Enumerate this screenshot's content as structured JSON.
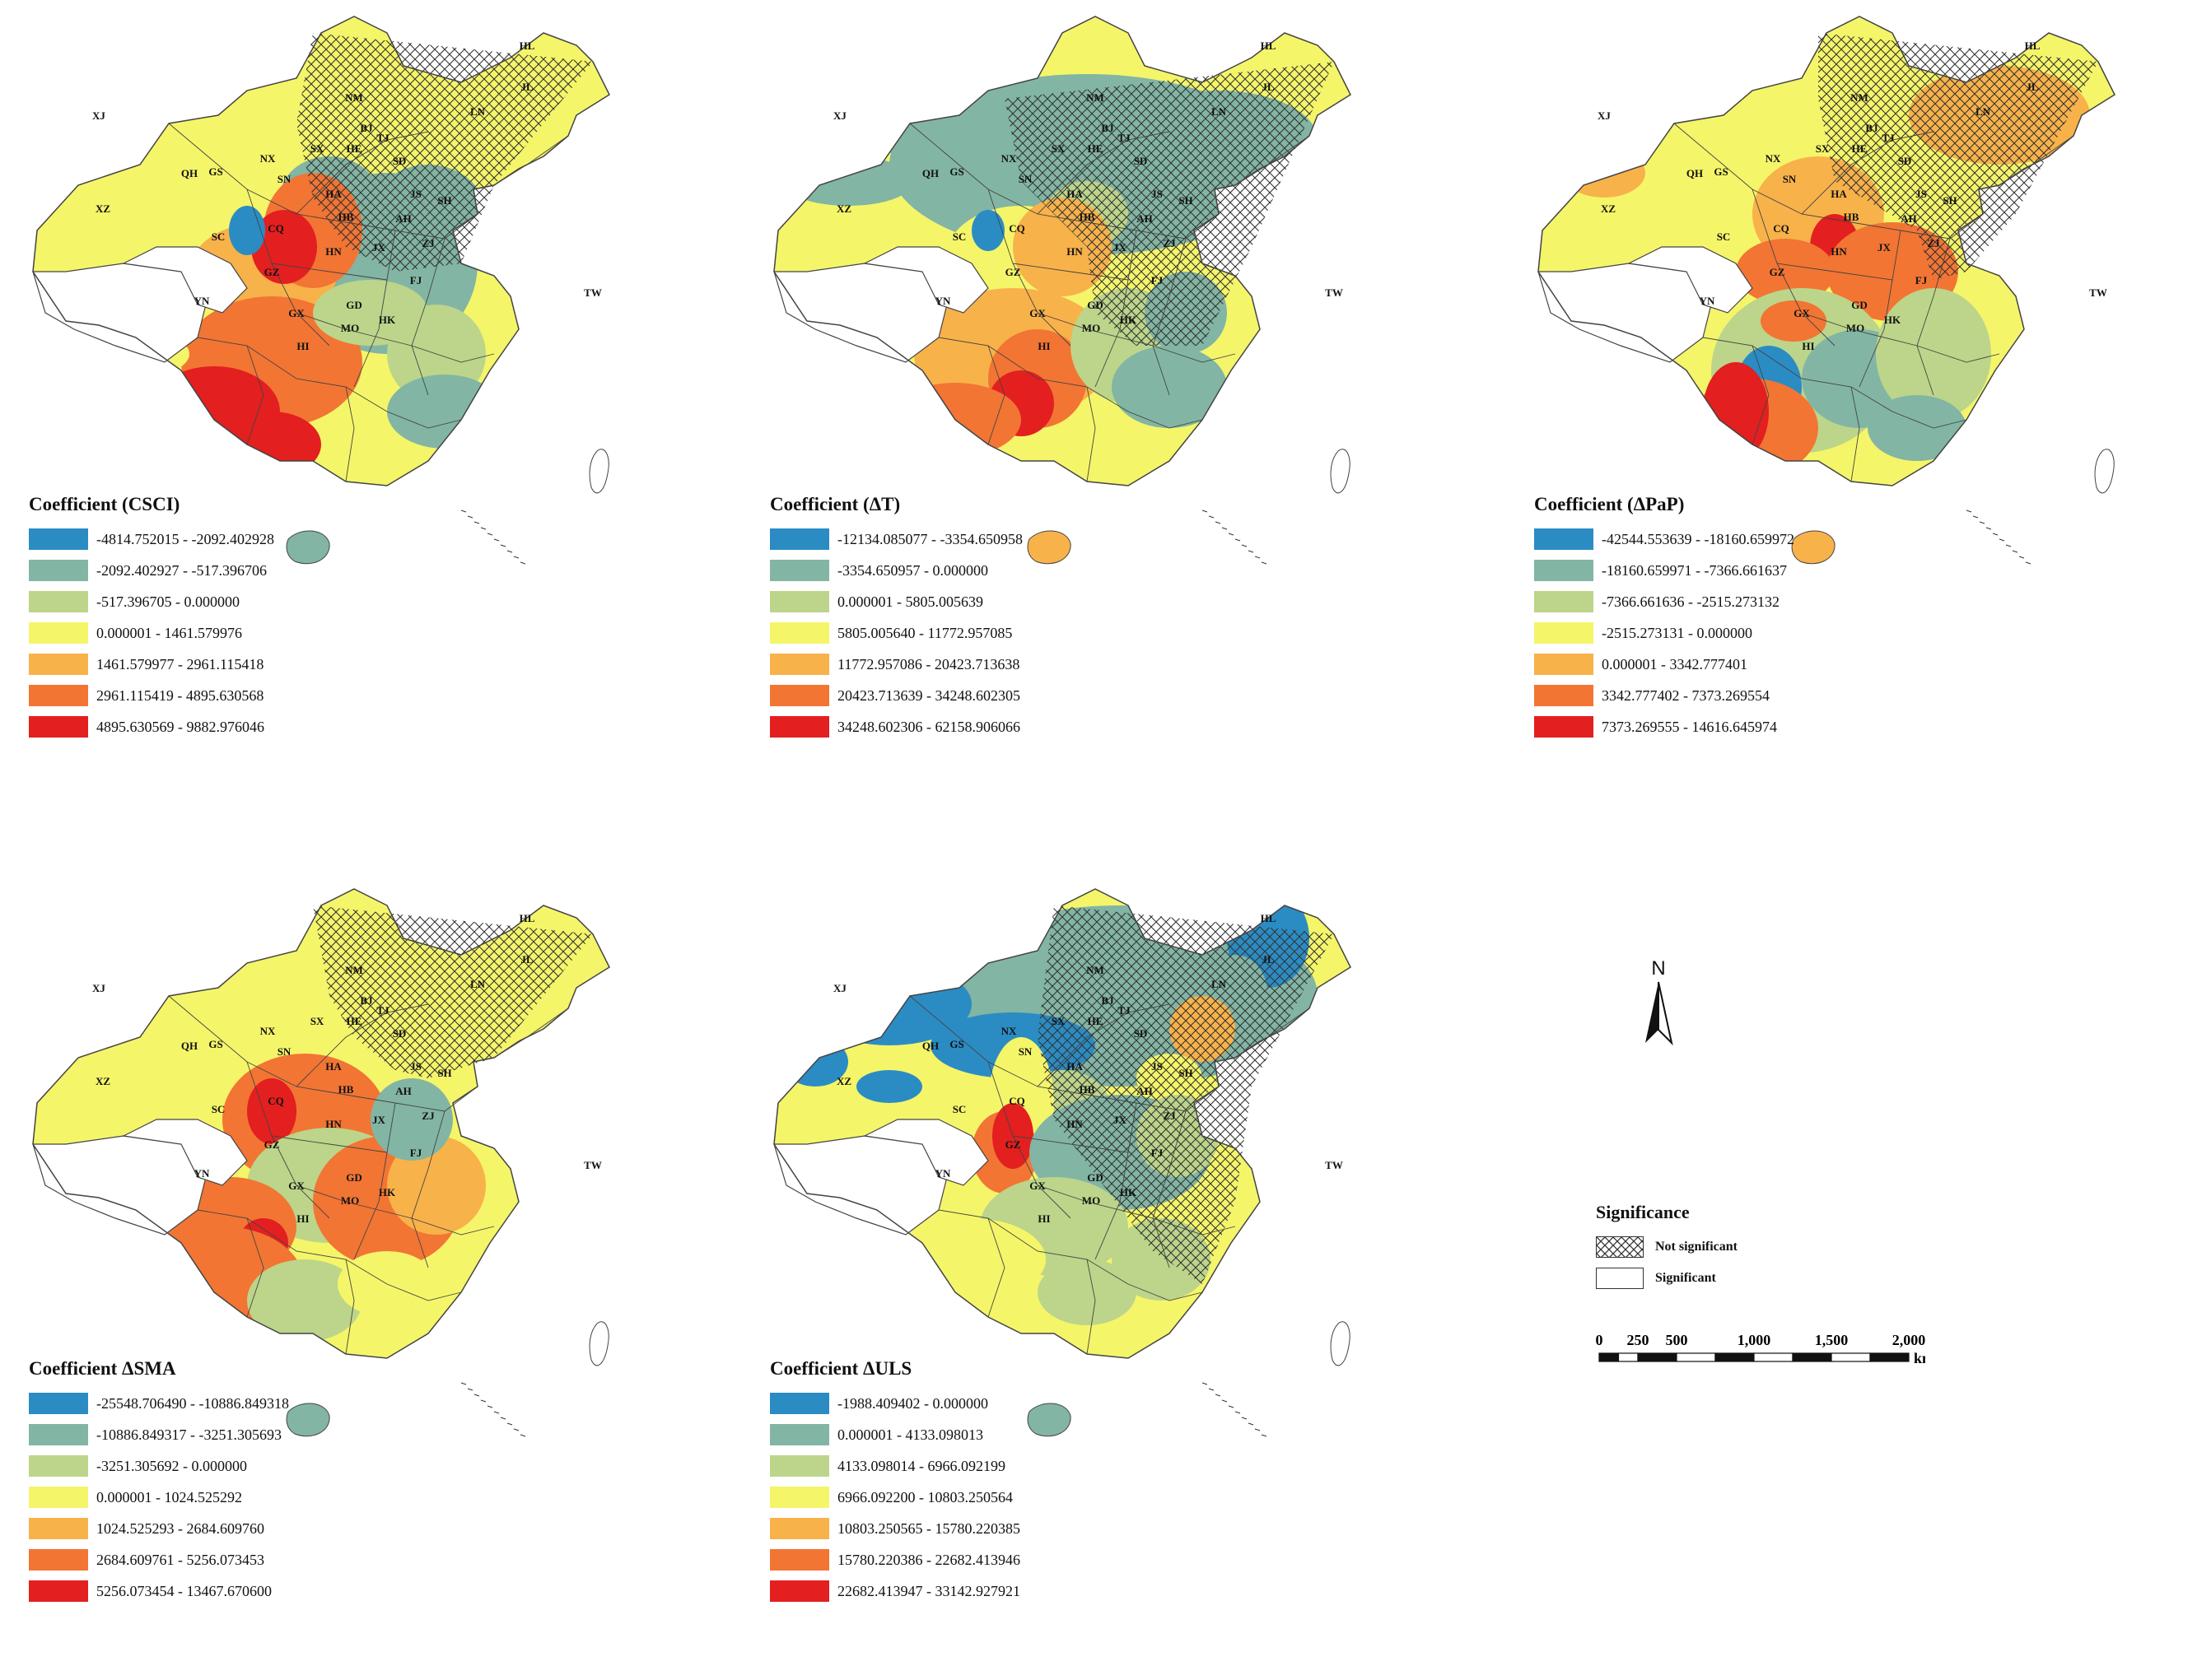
{
  "panels": [
    {
      "title": "Coefficient (CSCI)",
      "classes": [
        {
          "range": "-4814.752015 - -2092.402928",
          "color": "#2b8cc4"
        },
        {
          "range": "-2092.402927 - -517.396706",
          "color": "#82b5a4"
        },
        {
          "range": "-517.396705 - 0.000000",
          "color": "#bcd58a"
        },
        {
          "range": "0.000001 - 1461.579976",
          "color": "#f5f56a"
        },
        {
          "range": "1461.579977 - 2961.115418",
          "color": "#f8b24a"
        },
        {
          "range": "2961.115419 - 4895.630568",
          "color": "#f27534"
        },
        {
          "range": "4895.630569 - 9882.976046",
          "color": "#e31f1f"
        }
      ]
    },
    {
      "title": "Coefficient  (ΔT)",
      "classes": [
        {
          "range": "-12134.085077 - -3354.650958",
          "color": "#2b8cc4"
        },
        {
          "range": "-3354.650957 - 0.000000",
          "color": "#82b5a4"
        },
        {
          "range": "0.000001 - 5805.005639",
          "color": "#bcd58a"
        },
        {
          "range": "5805.005640 - 11772.957085",
          "color": "#f5f56a"
        },
        {
          "range": "11772.957086 - 20423.713638",
          "color": "#f8b24a"
        },
        {
          "range": "20423.713639 - 34248.602305",
          "color": "#f27534"
        },
        {
          "range": "34248.602306 - 62158.906066",
          "color": "#e31f1f"
        }
      ]
    },
    {
      "title": "Coefficient  (ΔPaP)",
      "classes": [
        {
          "range": "-42544.553639 - -18160.659972",
          "color": "#2b8cc4"
        },
        {
          "range": "-18160.659971 - -7366.661637",
          "color": "#82b5a4"
        },
        {
          "range": "-7366.661636 - -2515.273132",
          "color": "#bcd58a"
        },
        {
          "range": "-2515.273131 - 0.000000",
          "color": "#f5f56a"
        },
        {
          "range": "0.000001 - 3342.777401",
          "color": "#f8b24a"
        },
        {
          "range": "3342.777402 - 7373.269554",
          "color": "#f27534"
        },
        {
          "range": "7373.269555 - 14616.645974",
          "color": "#e31f1f"
        }
      ]
    },
    {
      "title": "Coefficient  ΔSMA",
      "classes": [
        {
          "range": "-25548.706490 - -10886.849318",
          "color": "#2b8cc4"
        },
        {
          "range": "-10886.849317 - -3251.305693",
          "color": "#82b5a4"
        },
        {
          "range": "-3251.305692 - 0.000000",
          "color": "#bcd58a"
        },
        {
          "range": "0.000001 - 1024.525292",
          "color": "#f5f56a"
        },
        {
          "range": "1024.525293 - 2684.609760",
          "color": "#f8b24a"
        },
        {
          "range": "2684.609761 - 5256.073453",
          "color": "#f27534"
        },
        {
          "range": "5256.073454 - 13467.670600",
          "color": "#e31f1f"
        }
      ]
    },
    {
      "title": "Coefficient  ΔULS",
      "classes": [
        {
          "range": "-1988.409402 - 0.000000",
          "color": "#2b8cc4"
        },
        {
          "range": "0.000001 - 4133.098013",
          "color": "#82b5a4"
        },
        {
          "range": "4133.098014 - 6966.092199",
          "color": "#bcd58a"
        },
        {
          "range": "6966.092200 - 10803.250564",
          "color": "#f5f56a"
        },
        {
          "range": "10803.250565 - 15780.220385",
          "color": "#f8b24a"
        },
        {
          "range": "15780.220386 - 22682.413946",
          "color": "#f27534"
        },
        {
          "range": "22682.413947 - 33142.927921",
          "color": "#e31f1f"
        }
      ]
    }
  ],
  "province_labels": [
    "XJ",
    "QH",
    "XZ",
    "GS",
    "NX",
    "SN",
    "SX",
    "HE",
    "BJ",
    "TJ",
    "NM",
    "HL",
    "JL",
    "LN",
    "SD",
    "HA",
    "JS",
    "SH",
    "AH",
    "HB",
    "ZJ",
    "CQ",
    "SC",
    "HN",
    "JX",
    "FJ",
    "GZ",
    "YN",
    "GX",
    "GD",
    "HK",
    "MO",
    "TW",
    "HI"
  ],
  "north_arrow": {
    "label": "N"
  },
  "significance": {
    "title": "Significance",
    "not_significant": "Not significant",
    "significant": "Significant"
  },
  "scale_bar": {
    "ticks": [
      "0",
      "250",
      "500",
      "1,000",
      "1,500",
      "2,000"
    ],
    "unit": "km"
  },
  "colors": {
    "hatch": "#333333",
    "boundary": "#444444"
  }
}
